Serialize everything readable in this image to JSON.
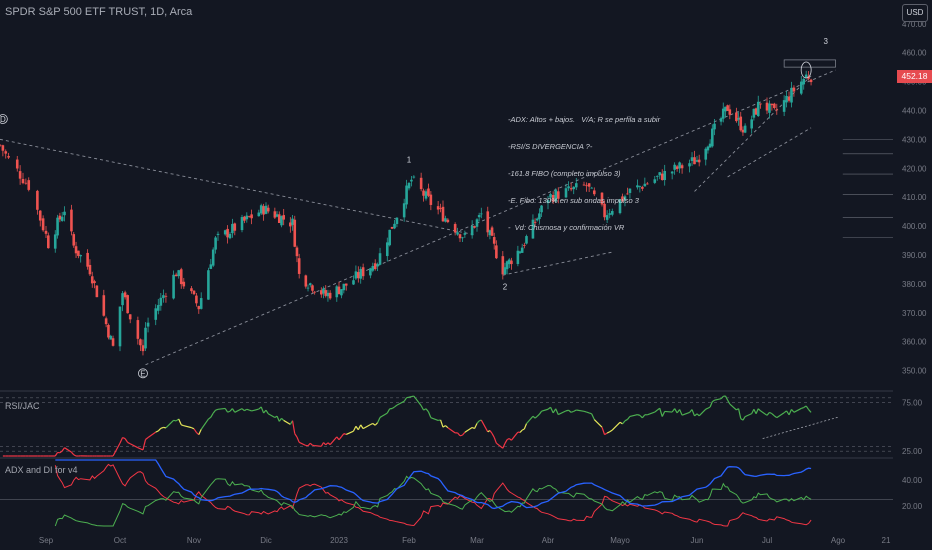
{
  "header": {
    "symbol_title": "SPDR S&P 500 ETF TRUST, 1D, Arca",
    "currency": "USD",
    "last_price_label": "452.18"
  },
  "annotation_note": {
    "lines": [
      "-ADX: Altos + bajos.   V/A; R se perfila a subir",
      "-RSI/S DIVERGENCIA ?-",
      "-161.8 FIBO (completo impulso 3)",
      "-E. Fibo: 130% en sub ondas impulso 3",
      "-  Vd: Chismosa y confirmación VR"
    ]
  },
  "wave_labels": {
    "D": "D",
    "E": "E",
    "w1": "1",
    "w2": "2",
    "w3": "3"
  },
  "indicators": {
    "rsi_title": "RSI/JAC",
    "adx_title": "ADX and DI for v4"
  },
  "colors": {
    "up": "#26a69a",
    "down": "#ef5350",
    "background": "#131722",
    "adx": "#2962ff",
    "di_plus": "#4caf50",
    "di_minus": "#f23645",
    "rsi_mid": "#e6e65a"
  },
  "chart_data": [
    {
      "type": "candlestick",
      "title": "SPDR S&P 500 ETF TRUST, 1D, Arca",
      "ylim": [
        345,
        472
      ],
      "y_ticks": [
        "350.00",
        "360.00",
        "370.00",
        "380.00",
        "390.00",
        "400.00",
        "410.00",
        "420.00",
        "430.00",
        "440.00",
        "450.00",
        "460.00",
        "470.00"
      ],
      "x_ticks": [
        "Sep",
        "Oct",
        "Nov",
        "Dic",
        "2023",
        "Feb",
        "Mar",
        "Abr",
        "Mayo",
        "Jun",
        "Jul",
        "Ago",
        "21"
      ],
      "anchors": [
        {
          "date": "2022-08-16",
          "close": 428
        },
        {
          "date": "2022-08-19",
          "close": 423
        },
        {
          "date": "2022-08-26",
          "close": 414
        },
        {
          "date": "2022-09-02",
          "close": 394
        },
        {
          "date": "2022-09-09",
          "close": 406
        },
        {
          "date": "2022-09-13",
          "close": 393
        },
        {
          "date": "2022-09-20",
          "close": 385
        },
        {
          "date": "2022-09-30",
          "close": 358
        },
        {
          "date": "2022-10-04",
          "close": 377
        },
        {
          "date": "2022-10-12",
          "close": 356
        },
        {
          "date": "2022-10-13",
          "close": 365
        },
        {
          "date": "2022-10-25",
          "close": 384
        },
        {
          "date": "2022-11-03",
          "close": 372
        },
        {
          "date": "2022-11-10",
          "close": 395
        },
        {
          "date": "2022-11-30",
          "close": 406
        },
        {
          "date": "2022-12-13",
          "close": 401
        },
        {
          "date": "2022-12-16",
          "close": 383
        },
        {
          "date": "2022-12-28",
          "close": 376
        },
        {
          "date": "2023-01-05",
          "close": 379
        },
        {
          "date": "2023-01-19",
          "close": 388
        },
        {
          "date": "2023-02-02",
          "close": 416
        },
        {
          "date": "2023-02-10",
          "close": 408
        },
        {
          "date": "2023-02-24",
          "close": 396
        },
        {
          "date": "2023-03-03",
          "close": 404
        },
        {
          "date": "2023-03-13",
          "close": 385
        },
        {
          "date": "2023-03-22",
          "close": 393
        },
        {
          "date": "2023-04-03",
          "close": 410
        },
        {
          "date": "2023-04-18",
          "close": 414
        },
        {
          "date": "2023-04-25",
          "close": 404
        },
        {
          "date": "2023-05-05",
          "close": 412
        },
        {
          "date": "2023-05-19",
          "close": 418
        },
        {
          "date": "2023-06-01",
          "close": 423
        },
        {
          "date": "2023-06-15",
          "close": 441
        },
        {
          "date": "2023-06-23",
          "close": 433
        },
        {
          "date": "2023-06-30",
          "close": 443
        },
        {
          "date": "2023-07-06",
          "close": 439
        },
        {
          "date": "2023-07-19",
          "close": 452
        },
        {
          "date": "2023-07-21",
          "close": 452
        }
      ]
    },
    {
      "type": "line",
      "title": "RSI/JAC",
      "ylim": [
        20,
        85
      ],
      "y_ticks": [
        "25.00",
        "75.00"
      ]
    },
    {
      "type": "line",
      "title": "ADX and DI for v4",
      "ylim": [
        5,
        55
      ],
      "y_ticks": [
        "20.00",
        "40.00"
      ],
      "series": [
        {
          "name": "ADX"
        },
        {
          "name": "DI+"
        },
        {
          "name": "DI-"
        }
      ]
    }
  ]
}
